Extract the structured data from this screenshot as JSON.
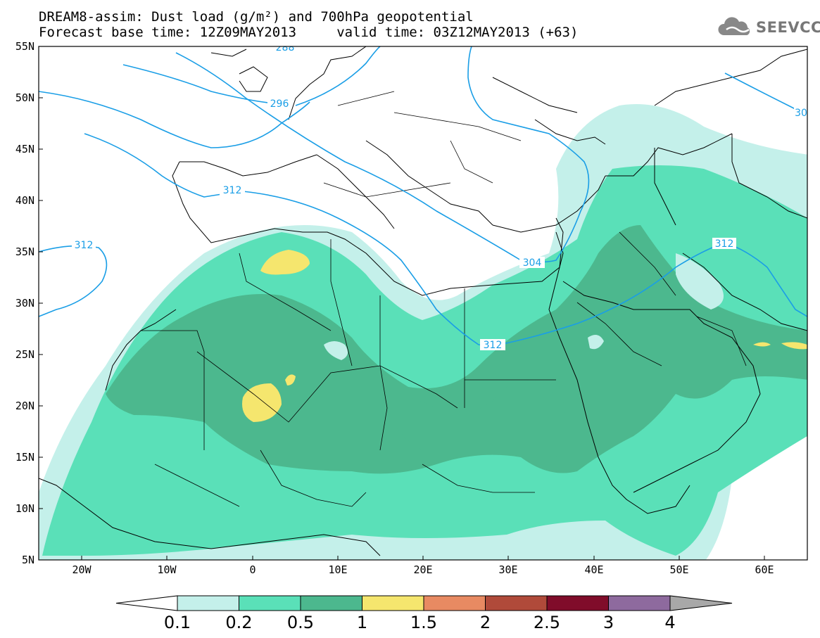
{
  "title": {
    "line1": "DREAM8-assim: Dust load (g/m²) and 700hPa geopotential",
    "line2": "Forecast base time: 12Z09MAY2013     valid time: 03Z12MAY2013 (+63)"
  },
  "logo": {
    "text": "SEEVCCC",
    "icon": "cloud-icon"
  },
  "axes": {
    "lat_labels": [
      "55N",
      "50N",
      "45N",
      "40N",
      "35N",
      "30N",
      "25N",
      "20N",
      "15N",
      "10N",
      "5N"
    ],
    "lon_labels": [
      "20W",
      "10W",
      "0",
      "10E",
      "20E",
      "30E",
      "40E",
      "50E",
      "60E"
    ]
  },
  "contours": {
    "label_values": [
      "296",
      "312",
      "312",
      "304",
      "312",
      "312",
      "30",
      "288"
    ],
    "color": "#1a9ee6"
  },
  "colorbar": {
    "bins": [
      {
        "color": "#c4f0ea"
      },
      {
        "color": "#5ae0b8"
      },
      {
        "color": "#4cb88e"
      },
      {
        "color": "#f5e66e"
      },
      {
        "color": "#e88a62"
      },
      {
        "color": "#b04a3a"
      },
      {
        "color": "#800c2a"
      },
      {
        "color": "#8e6a9e"
      }
    ],
    "labels": [
      "0.1",
      "0.2",
      "0.5",
      "1",
      "1.5",
      "2",
      "2.5",
      "3",
      "4"
    ],
    "under_color": "#ffffff",
    "over_color": "#a8a8a8"
  }
}
